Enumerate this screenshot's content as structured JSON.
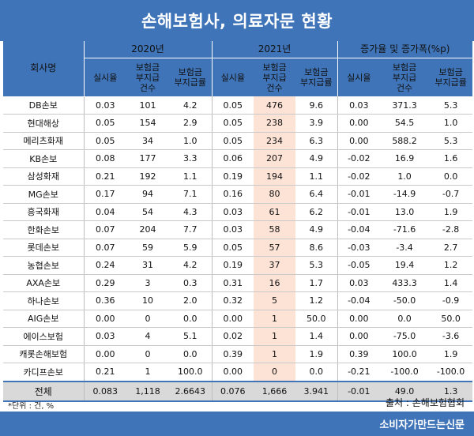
{
  "title": "손해보험사, 의료자문 현황",
  "headers": {
    "company": "회사명",
    "groups": [
      "2020년",
      "2021년",
      "증가율 및 증가폭(%p)"
    ],
    "sub": [
      "실시율",
      "보험금\n부지급\n건수",
      "보험금\n부지급률",
      "실시율",
      "보험금\n부지급\n건수",
      "보험금\n부지급률",
      "실시율",
      "보험금\n부지급\n건수",
      "보험금\n부지급률"
    ]
  },
  "rows": [
    {
      "company": "DB손보",
      "v": [
        "0.03",
        "101",
        "4.2",
        "0.05",
        "476",
        "9.6",
        "0.03",
        "371.3",
        "5.3"
      ]
    },
    {
      "company": "현대해상",
      "v": [
        "0.05",
        "154",
        "2.9",
        "0.05",
        "238",
        "3.9",
        "0.00",
        "54.5",
        "1.0"
      ]
    },
    {
      "company": "메리츠화재",
      "v": [
        "0.05",
        "34",
        "1.0",
        "0.05",
        "234",
        "6.3",
        "0.00",
        "588.2",
        "5.3"
      ]
    },
    {
      "company": "KB손보",
      "v": [
        "0.08",
        "177",
        "3.3",
        "0.06",
        "207",
        "4.9",
        "-0.02",
        "16.9",
        "1.6"
      ]
    },
    {
      "company": "삼성화재",
      "v": [
        "0.21",
        "192",
        "1.1",
        "0.19",
        "194",
        "1.1",
        "-0.02",
        "1.0",
        "0.0"
      ]
    },
    {
      "company": "MG손보",
      "v": [
        "0.17",
        "94",
        "7.1",
        "0.16",
        "80",
        "6.4",
        "-0.01",
        "-14.9",
        "-0.7"
      ]
    },
    {
      "company": "흥국화재",
      "v": [
        "0.04",
        "54",
        "4.3",
        "0.03",
        "61",
        "6.2",
        "-0.01",
        "13.0",
        "1.9"
      ]
    },
    {
      "company": "한화손보",
      "v": [
        "0.07",
        "204",
        "7.7",
        "0.03",
        "58",
        "4.9",
        "-0.04",
        "-71.6",
        "-2.8"
      ]
    },
    {
      "company": "롯데손보",
      "v": [
        "0.07",
        "59",
        "5.9",
        "0.05",
        "57",
        "8.6",
        "-0.03",
        "-3.4",
        "2.7"
      ]
    },
    {
      "company": "농협손보",
      "v": [
        "0.24",
        "31",
        "4.2",
        "0.19",
        "37",
        "5.3",
        "-0.05",
        "19.4",
        "1.2"
      ]
    },
    {
      "company": "AXA손보",
      "v": [
        "0.29",
        "3",
        "0.3",
        "0.31",
        "16",
        "1.7",
        "0.03",
        "433.3",
        "1.4"
      ]
    },
    {
      "company": "하나손보",
      "v": [
        "0.36",
        "10",
        "2.0",
        "0.32",
        "5",
        "1.2",
        "-0.04",
        "-50.0",
        "-0.9"
      ]
    },
    {
      "company": "AIG손보",
      "v": [
        "0.00",
        "0",
        "0.0",
        "0.00",
        "1",
        "50.0",
        "0.00",
        "0.0",
        "50.0"
      ]
    },
    {
      "company": "에이스보험",
      "v": [
        "0.03",
        "4",
        "5.1",
        "0.02",
        "1",
        "1.4",
        "0.00",
        "-75.0",
        "-3.6"
      ]
    },
    {
      "company": "캐롯손해보험",
      "v": [
        "0.00",
        "0",
        "0.0",
        "0.39",
        "1",
        "1.9",
        "0.39",
        "100.0",
        "1.9"
      ]
    },
    {
      "company": "카디프손보",
      "v": [
        "0.21",
        "1",
        "100.0",
        "0.00",
        "0",
        "0.0",
        "-0.21",
        "-100.0",
        "-100.0"
      ]
    }
  ],
  "total": {
    "company": "전체",
    "v": [
      "0.083",
      "1,118",
      "2.6643",
      "0.076",
      "1,666",
      "3.941",
      "-0.01",
      "49.0",
      "1.3"
    ]
  },
  "note": "*단위 : 건, %",
  "source": "출처 : 손해보험협회",
  "footer": "소비자가만드는신문",
  "colors": {
    "header": "#3f74b8",
    "highlight": "#fde3d6",
    "total": "#d9d9d9"
  }
}
